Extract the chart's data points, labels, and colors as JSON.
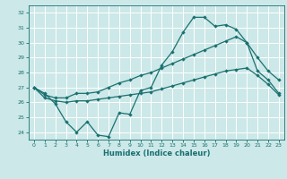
{
  "xlabel": "Humidex (Indice chaleur)",
  "xlim": [
    -0.5,
    23.5
  ],
  "ylim": [
    23.5,
    32.5
  ],
  "yticks": [
    24,
    25,
    26,
    27,
    28,
    29,
    30,
    31,
    32
  ],
  "xticks": [
    0,
    1,
    2,
    3,
    4,
    5,
    6,
    7,
    8,
    9,
    10,
    11,
    12,
    13,
    14,
    15,
    16,
    17,
    18,
    19,
    20,
    21,
    22,
    23
  ],
  "bg_color": "#cce8e8",
  "grid_color": "#ffffff",
  "line_color": "#1a7070",
  "line1_y": [
    27.0,
    26.6,
    25.9,
    24.7,
    24.0,
    24.7,
    23.8,
    23.7,
    25.3,
    25.2,
    26.8,
    27.0,
    28.5,
    29.4,
    30.7,
    31.7,
    31.7,
    31.1,
    31.2,
    30.9,
    30.0,
    28.1,
    27.5,
    26.6
  ],
  "line2_y": [
    27.0,
    26.5,
    26.3,
    26.3,
    26.6,
    26.6,
    26.7,
    27.0,
    27.3,
    27.5,
    27.8,
    28.0,
    28.3,
    28.6,
    28.9,
    29.2,
    29.5,
    29.8,
    30.1,
    30.4,
    30.0,
    29.0,
    28.1,
    27.5
  ],
  "line3_y": [
    27.0,
    26.3,
    26.1,
    26.0,
    26.1,
    26.1,
    26.2,
    26.3,
    26.4,
    26.5,
    26.6,
    26.7,
    26.9,
    27.1,
    27.3,
    27.5,
    27.7,
    27.9,
    28.1,
    28.2,
    28.3,
    27.8,
    27.2,
    26.5
  ]
}
